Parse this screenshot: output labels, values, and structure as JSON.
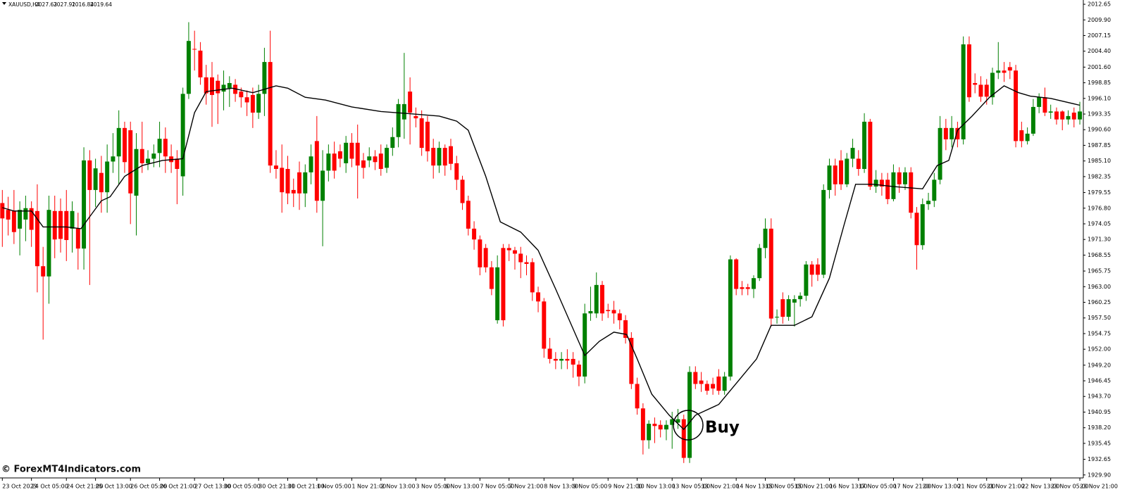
{
  "chart_data": {
    "type": "candlestick",
    "symbol": "XAUUSD,H4",
    "ohlc_info": [
      2027.63,
      2027.91,
      2016.84,
      2019.64
    ],
    "watermark": "© ForexMT4Indicators.com",
    "annotation": "Buy",
    "up_color": "#008000",
    "down_color": "#ff0000",
    "open": [
      1977.7,
      1976.5,
      1976.3,
      1973.2,
      1974.8,
      1976.8,
      1976.3,
      1966.6,
      1964.8,
      1976.3,
      1976.3,
      1976.3,
      1973.2,
      1973.2,
      1969.7,
      1985.2,
      1980.0,
      1983.0,
      1979.6,
      1985.0,
      1985.9,
      1990.9,
      1990.5,
      1979.0,
      1987.2,
      1984.7,
      1985.5,
      1986.5,
      1989.0,
      1985.9,
      1985.5,
      1982.4,
      1996.9,
      2004.8,
      2004.5,
      1999.8,
      1999.8,
      1999.2,
      1997.3,
      1997.9,
      1998.5,
      1997.3,
      1996.3,
      1996.7,
      1993.6,
      1996.9,
      2002.5,
      1984.3,
      1983.9,
      1983.7,
      1980.0,
      1983.1,
      1979.4,
      1983.1,
      1988.6,
      1978.1,
      1983.4,
      1986.4,
      1986.8,
      1984.7,
      1988.3,
      1988.3,
      1985.2,
      1985.2,
      1985.9,
      1986.4,
      1983.9,
      1987.4,
      1989.3,
      1992.4,
      1997.3,
      1993.0,
      1992.6,
      1992.0,
      1987.4,
      1984.3,
      1987.4,
      1987.7,
      1984.7,
      1981.8,
      1978.1,
      1973.2,
      1971.3,
      1969.8,
      1966.4,
      1957.1,
      1969.8,
      1969.8,
      1969.4,
      1968.8,
      1967.3,
      1967.3,
      1962.0,
      1960.4,
      1952.1,
      1950.3,
      1950.0,
      1950.3,
      1950.3,
      1949.3,
      1947.2,
      1958.3,
      1958.3,
      1963.3,
      1958.9,
      1958.9,
      1958.3,
      1957.1,
      1954.0,
      1945.9,
      1941.6,
      1936.0,
      1938.9,
      1938.7,
      1937.9,
      1938.7,
      1939.1,
      1939.7,
      1932.9,
      1948.0,
      1946.5,
      1945.9,
      1945.9,
      1947.2,
      1944.7,
      1947.2,
      1967.8,
      1962.9,
      1962.9,
      1962.6,
      1964.5,
      1969.8,
      1973.2,
      1957.7,
      1960.8,
      1957.7,
      1960.2,
      1960.8,
      1961.4,
      1966.9,
      1966.9,
      1965.1,
      1980.0,
      1984.3,
      1985.2,
      1981.0,
      1985.5,
      1985.5,
      1983.7,
      1992.0,
      1980.6,
      1981.8,
      1981.8,
      1978.4,
      1983.1,
      1981.0,
      1983.1,
      1976.0,
      1970.3,
      1977.5,
      1978.1,
      1981.8,
      1990.9,
      1988.9,
      1990.9,
      1988.9,
      2005.6,
      1998.8,
      1998.5,
      1998.5,
      1996.3,
      2000.6,
      2001.0,
      2001.6,
      2001.0,
      1990.5,
      1988.6,
      1989.9,
      1994.6,
      1996.3,
      1993.6,
      1993.8,
      1993.8,
      1992.4,
      1993.6,
      1992.4
    ],
    "high": [
      1980.0,
      1978.8,
      1980.0,
      1978.0,
      1979.0,
      1978.0,
      1981.0,
      1970.0,
      1979.0,
      1979.0,
      1978.5,
      1980.0,
      1978.0,
      1976.0,
      1987.5,
      1987.0,
      1985.5,
      1986.0,
      1988.0,
      1990.0,
      1994.0,
      1992.0,
      1992.0,
      1990.0,
      1992.0,
      1987.0,
      1988.0,
      1992.0,
      1991.0,
      1988.0,
      1987.0,
      1998.0,
      2009.5,
      2008.0,
      2006.0,
      2002.0,
      2002.5,
      2000.3,
      2001.0,
      2000.0,
      1999.5,
      1998.0,
      1997.5,
      1998.0,
      1998.5,
      2005.0,
      2008.0,
      1987.0,
      1988.0,
      1986.0,
      1982.0,
      1985.0,
      1984.5,
      1988.0,
      1993.0,
      1987.0,
      1988.0,
      1988.5,
      1988.0,
      1989.5,
      1990.0,
      1991.5,
      1986.5,
      1987.5,
      1987.0,
      1988.0,
      1988.0,
      1991.0,
      1996.0,
      2004.1,
      1999.8,
      1994.5,
      1994.0,
      1993.0,
      1989.0,
      1988.5,
      1988.0,
      1989.0,
      1986.0,
      1982.5,
      1979.0,
      1974.5,
      1972.0,
      1970.5,
      1967.5,
      1968.5,
      1970.5,
      1970.5,
      1970.0,
      1970.0,
      1968.5,
      1968.0,
      1963.0,
      1961.0,
      1954.0,
      1951.5,
      1951.5,
      1952.0,
      1951.5,
      1950.0,
      1960.0,
      1963.0,
      1965.5,
      1964.0,
      1960.0,
      1960.5,
      1959.0,
      1958.0,
      1955.0,
      1947.0,
      1942.5,
      1939.5,
      1940.0,
      1939.5,
      1939.5,
      1941.0,
      1941.5,
      1940.5,
      1949.0,
      1949.0,
      1948.0,
      1946.5,
      1947.0,
      1948.5,
      1948.0,
      1968.5,
      1968.0,
      1964.0,
      1963.5,
      1965.0,
      1970.5,
      1975.0,
      1975.0,
      1959.0,
      1962.0,
      1961.5,
      1961.5,
      1962.0,
      1967.5,
      1967.5,
      1968.0,
      1981.0,
      1985.5,
      1985.5,
      1987.0,
      1986.5,
      1989.0,
      1987.0,
      1993.5,
      1992.5,
      1983.5,
      1983.0,
      1983.0,
      1984.5,
      1984.0,
      1984.0,
      1984.0,
      1977.0,
      1978.5,
      1979.5,
      1983.0,
      1993.0,
      1992.5,
      1993.0,
      1992.0,
      2007.0,
      2007.0,
      2000.5,
      2000.0,
      1999.5,
      2001.5,
      2006.0,
      2002.5,
      2002.5,
      2002.0,
      1992.0,
      1991.0,
      1996.0,
      1997.0,
      1998.0,
      1995.0,
      1994.5,
      1994.0,
      1994.0,
      1994.5,
      1995.5
    ],
    "low": [
      1970.0,
      1972.0,
      1970.5,
      1968.5,
      1971.0,
      1970.0,
      1962.0,
      1953.7,
      1960.0,
      1968.0,
      1969.0,
      1967.5,
      1969.0,
      1966.0,
      1966.0,
      1963.3,
      1977.0,
      1976.0,
      1976.0,
      1983.0,
      1981.0,
      1983.0,
      1974.0,
      1972.0,
      1983.0,
      1983.5,
      1984.0,
      1984.0,
      1983.0,
      1983.0,
      1977.5,
      1979.0,
      1996.0,
      2001.0,
      1998.5,
      1995.0,
      1991.1,
      1991.6,
      1994.0,
      1994.6,
      1995.5,
      1994.5,
      1993.0,
      1990.9,
      1992.5,
      1993.0,
      1983.0,
      1982.0,
      1976.0,
      1977.5,
      1977.0,
      1976.5,
      1977.0,
      1981.0,
      1976.0,
      1970.1,
      1981.5,
      1982.0,
      1984.0,
      1983.0,
      1984.0,
      1978.5,
      1982.0,
      1984.0,
      1983.5,
      1982.5,
      1983.0,
      1986.0,
      1987.5,
      1989.0,
      1988.0,
      1991.0,
      1986.0,
      1985.0,
      1982.0,
      1983.0,
      1982.5,
      1983.5,
      1980.0,
      1976.5,
      1972.0,
      1969.5,
      1965.0,
      1965.5,
      1961.5,
      1956.5,
      1956.0,
      1967.5,
      1966.0,
      1964.5,
      1965.0,
      1960.5,
      1958.5,
      1950.5,
      1949.5,
      1948.5,
      1948.5,
      1948.5,
      1947.0,
      1945.5,
      1946.0,
      1957.0,
      1957.5,
      1957.0,
      1957.5,
      1956.5,
      1955.5,
      1953.0,
      1945.0,
      1940.5,
      1933.5,
      1934.5,
      1935.5,
      1936.5,
      1936.0,
      1934.5,
      1938.0,
      1932.0,
      1932.0,
      1945.0,
      1944.5,
      1944.0,
      1944.0,
      1944.0,
      1944.0,
      1946.5,
      1961.5,
      1961.5,
      1961.5,
      1961.0,
      1964.0,
      1968.0,
      1956.0,
      1956.5,
      1956.5,
      1957.0,
      1956.0,
      1959.5,
      1960.5,
      1963.0,
      1964.0,
      1964.5,
      1978.5,
      1979.0,
      1980.0,
      1980.5,
      1984.0,
      1982.5,
      1983.0,
      1980.0,
      1979.5,
      1979.0,
      1977.5,
      1978.0,
      1979.5,
      1980.0,
      1975.0,
      1966.0,
      1969.5,
      1976.5,
      1977.0,
      1981.0,
      1987.0,
      1987.5,
      1987.5,
      1988.0,
      1995.5,
      1997.0,
      1995.5,
      1995.0,
      1995.0,
      1999.5,
      1999.0,
      1999.5,
      1987.5,
      1987.5,
      1988.0,
      1989.5,
      1993.5,
      1993.0,
      1992.5,
      1991.5,
      1990.5,
      1991.5,
      1991.0,
      1991.5
    ],
    "close": [
      1975.0,
      1974.8,
      1972.6,
      1976.5,
      1976.8,
      1973.0,
      1966.6,
      1964.8,
      1976.5,
      1971.3,
      1971.4,
      1971.2,
      1976.3,
      1969.7,
      1985.2,
      1980.0,
      1983.8,
      1979.6,
      1985.0,
      1985.9,
      1990.9,
      1984.9,
      1979.4,
      1987.2,
      1984.7,
      1985.5,
      1986.4,
      1989.0,
      1985.9,
      1984.9,
      1983.7,
      1996.9,
      2006.2,
      2004.7,
      1999.8,
      1997.0,
      1996.7,
      1997.0,
      1998.5,
      1998.8,
      1996.9,
      1996.3,
      1995.4,
      1993.6,
      1996.9,
      2002.5,
      1984.3,
      1983.7,
      1979.6,
      1979.4,
      1979.4,
      1979.4,
      1983.1,
      1985.9,
      1978.1,
      1983.4,
      1986.4,
      1983.4,
      1985.5,
      1988.3,
      1985.5,
      1984.3,
      1983.9,
      1985.9,
      1984.9,
      1983.7,
      1987.4,
      1989.3,
      1995.1,
      1995.1,
      1993.6,
      1992.6,
      1987.4,
      1986.8,
      1984.3,
      1987.4,
      1984.3,
      1984.6,
      1981.8,
      1977.7,
      1973.2,
      1971.3,
      1966.4,
      1966.4,
      1962.6,
      1966.4,
      1957.1,
      1969.4,
      1968.8,
      1967.3,
      1967.0,
      1962.0,
      1960.4,
      1952.1,
      1950.3,
      1950.0,
      1950.3,
      1950.0,
      1949.3,
      1947.2,
      1958.3,
      1958.7,
      1963.3,
      1958.3,
      1958.7,
      1958.3,
      1957.1,
      1954.0,
      1945.9,
      1941.6,
      1936.0,
      1938.9,
      1938.5,
      1937.9,
      1938.7,
      1939.7,
      1939.7,
      1932.9,
      1948.0,
      1945.9,
      1945.9,
      1944.7,
      1945.1,
      1944.7,
      1947.2,
      1967.8,
      1962.6,
      1962.6,
      1962.6,
      1964.5,
      1969.8,
      1973.2,
      1957.4,
      1957.7,
      1957.7,
      1960.8,
      1960.8,
      1961.4,
      1966.9,
      1965.1,
      1965.1,
      1980.0,
      1984.3,
      1981.0,
      1981.0,
      1985.5,
      1987.4,
      1983.7,
      1992.0,
      1980.6,
      1981.8,
      1980.6,
      1978.4,
      1983.1,
      1981.0,
      1983.1,
      1976.0,
      1970.3,
      1977.5,
      1978.1,
      1981.8,
      1990.9,
      1988.9,
      1990.9,
      1988.9,
      2005.6,
      1996.3,
      1998.5,
      1996.4,
      1996.4,
      2000.6,
      2001.0,
      2000.6,
      2001.0,
      1988.6,
      1988.6,
      1989.9,
      1994.6,
      1996.3,
      1993.6,
      1993.8,
      1992.4,
      1992.4,
      1993.0,
      1992.4,
      1993.8
    ],
    "ma": {
      "color": "#000000",
      "x": [
        0,
        2,
        5,
        7,
        11,
        13.5,
        17,
        18.5,
        21,
        24,
        27.5,
        31,
        33,
        35,
        39.5,
        43,
        47,
        49,
        52,
        55.5,
        60,
        65,
        70,
        75,
        78,
        80,
        83,
        85.5,
        89,
        92,
        95,
        100,
        102.5,
        105,
        107.2,
        109,
        111.5,
        114.5,
        117,
        119,
        123,
        126.5,
        129.5,
        132,
        136,
        139,
        142,
        144.5,
        146.5,
        149.5,
        153,
        158,
        160.5,
        162.5,
        164,
        166.5,
        169.5,
        172,
        174.5,
        176.5,
        180,
        185
      ],
      "values": [
        1976.9,
        1976.3,
        1976.3,
        1973.5,
        1973.5,
        1973.2,
        1978.1,
        1978.8,
        1982.4,
        1984.3,
        1985.2,
        1985.5,
        1993.6,
        1997.3,
        1997.9,
        1997.1,
        1998.3,
        1997.9,
        1996.3,
        1995.8,
        1994.6,
        1993.8,
        1993.4,
        1993.0,
        1992.1,
        1990.5,
        1982.4,
        1974.4,
        1972.6,
        1969.4,
        1962.6,
        1950.9,
        1953.4,
        1955.0,
        1954.6,
        1950.3,
        1944.1,
        1940.4,
        1937.9,
        1940.4,
        1942.3,
        1946.6,
        1950.3,
        1956.2,
        1956.2,
        1957.7,
        1964.5,
        1973.8,
        1981.0,
        1981.0,
        1980.6,
        1980.2,
        1984.3,
        1985.2,
        1990.5,
        1993.0,
        1996.3,
        1998.3,
        1997.1,
        1996.5,
        1996.1,
        1994.9
      ]
    },
    "xlim": [
      -0.4,
      185.6
    ],
    "xticks": [
      {
        "value": 0,
        "label": "23 Oct 2023"
      },
      {
        "value": 5,
        "label": "24 Oct 05:00"
      },
      {
        "value": 11,
        "label": "24 Oct 21:00"
      },
      {
        "value": 16,
        "label": "25 Oct 13:00"
      },
      {
        "value": 22,
        "label": "26 Oct 05:00"
      },
      {
        "value": 27,
        "label": "26 Oct 21:00"
      },
      {
        "value": 33,
        "label": "27 Oct 13:00"
      },
      {
        "value": 38,
        "label": "30 Oct 05:00"
      },
      {
        "value": 44,
        "label": "30 Oct 21:00"
      },
      {
        "value": 49,
        "label": "31 Oct 21:00"
      },
      {
        "value": 54,
        "label": "1 Nov 05:00"
      },
      {
        "value": 60,
        "label": "1 Nov 21:00"
      },
      {
        "value": 65,
        "label": "2 Nov 13:00"
      },
      {
        "value": 71,
        "label": "3 Nov 05:00"
      },
      {
        "value": 76,
        "label": "6 Nov 13:00"
      },
      {
        "value": 82,
        "label": "7 Nov 05:00"
      },
      {
        "value": 87,
        "label": "7 Nov 21:00"
      },
      {
        "value": 93,
        "label": "8 Nov 13:00"
      },
      {
        "value": 98,
        "label": "9 Nov 05:00"
      },
      {
        "value": 104,
        "label": "9 Nov 21:00"
      },
      {
        "value": 109,
        "label": "10 Nov 13:00"
      },
      {
        "value": 115,
        "label": "13 Nov 05:00"
      },
      {
        "value": 120,
        "label": "13 Nov 21:00"
      },
      {
        "value": 126,
        "label": "14 Nov 13:00"
      },
      {
        "value": 131,
        "label": "15 Nov 05:00"
      },
      {
        "value": 136,
        "label": "15 Nov 21:00"
      },
      {
        "value": 142,
        "label": "16 Nov 13:00"
      },
      {
        "value": 147,
        "label": "17 Nov 05:00"
      },
      {
        "value": 153,
        "label": "17 Nov 21:00"
      },
      {
        "value": 158,
        "label": "20 Nov 13:00"
      },
      {
        "value": 164,
        "label": "21 Nov 05:00"
      },
      {
        "value": 169,
        "label": "21 Nov 21:00"
      },
      {
        "value": 175,
        "label": "22 Nov 13:00"
      },
      {
        "value": 180,
        "label": "23 Nov 05:00"
      },
      {
        "value": 185,
        "label": "23 Nov 21:00"
      }
    ],
    "ylim": [
      1929.5,
      2013.4
    ],
    "yticks": [
      2012.65,
      {
        "value": 2009.9,
        "label": "2009.90"
      },
      2007.15,
      {
        "value": 2004.4,
        "label": "2004.40"
      },
      {
        "value": 2001.6,
        "label": "2001.60"
      },
      1998.85,
      {
        "value": 1996.1,
        "label": "1996.10"
      },
      1993.35,
      {
        "value": 1990.6,
        "label": "1990.60"
      },
      1987.85,
      {
        "value": 1985.1,
        "label": "1985.10"
      },
      1982.35,
      1979.55,
      {
        "value": 1976.8,
        "label": "1976.80"
      },
      1974.05,
      {
        "value": 1971.3,
        "label": "1971.30"
      },
      1968.55,
      1965.75,
      {
        "value": 1963,
        "label": "1963.00"
      },
      1960.25,
      {
        "value": 1957.5,
        "label": "1957.50"
      },
      1954.75,
      {
        "value": 1952,
        "label": "1952.00"
      },
      {
        "value": 1949.2,
        "label": "1949.20"
      },
      1946.45,
      {
        "value": 1943.7,
        "label": "1943.70"
      },
      1940.95,
      {
        "value": 1938.2,
        "label": "1938.20"
      },
      1935.45,
      1932.65,
      {
        "value": 1929.9,
        "label": "1929.90"
      }
    ]
  }
}
